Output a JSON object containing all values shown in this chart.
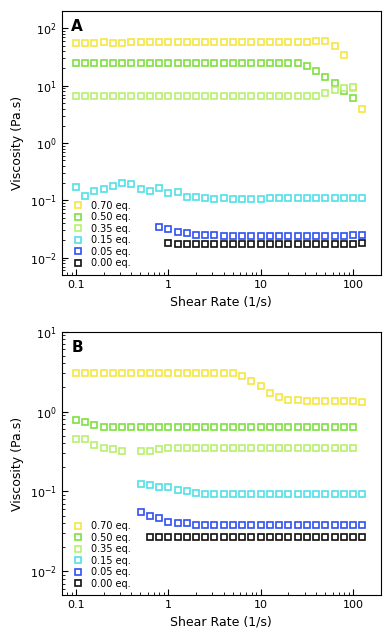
{
  "panel_A": {
    "label": "A",
    "ylabel": "Viscosity (Pa.s)",
    "xlabel": "Shear Rate (1/s)",
    "xlim": [
      0.07,
      200
    ],
    "ylim": [
      0.005,
      200
    ],
    "series": [
      {
        "label": "0.70 eq.",
        "color": "#f5e642",
        "x": [
          0.1,
          0.126,
          0.158,
          0.2,
          0.251,
          0.316,
          0.398,
          0.501,
          0.631,
          0.794,
          1.0,
          1.259,
          1.585,
          1.995,
          2.512,
          3.162,
          3.981,
          5.012,
          6.31,
          7.943,
          10.0,
          12.59,
          15.85,
          19.95,
          25.12,
          31.62,
          39.81,
          50.12,
          63.1,
          79.43,
          100.0,
          125.9
        ],
        "y": [
          55,
          55,
          55,
          57,
          56,
          56,
          57,
          57,
          57,
          57,
          57,
          57,
          57,
          57,
          57,
          57,
          57,
          57,
          57,
          57,
          57,
          57,
          57,
          57,
          57,
          57,
          60,
          60,
          50,
          35,
          9,
          4
        ]
      },
      {
        "label": "0.50 eq.",
        "color": "#7ee040",
        "x": [
          0.1,
          0.126,
          0.158,
          0.2,
          0.251,
          0.316,
          0.398,
          0.501,
          0.631,
          0.794,
          1.0,
          1.259,
          1.585,
          1.995,
          2.512,
          3.162,
          3.981,
          5.012,
          6.31,
          7.943,
          10.0,
          12.59,
          15.85,
          19.95,
          25.12,
          31.62,
          39.81,
          50.12,
          63.1,
          79.43,
          100.0
        ],
        "y": [
          25,
          25,
          25,
          25,
          25,
          25,
          25,
          25,
          25,
          25,
          25,
          25,
          25,
          25,
          25,
          25,
          25,
          25,
          25,
          25,
          25,
          25,
          25,
          25,
          25,
          22,
          18,
          14,
          11,
          8,
          6
        ]
      },
      {
        "label": "0.35 eq.",
        "color": "#b8f070",
        "x": [
          0.1,
          0.126,
          0.158,
          0.2,
          0.251,
          0.316,
          0.398,
          0.501,
          0.631,
          0.794,
          1.0,
          1.259,
          1.585,
          1.995,
          2.512,
          3.162,
          3.981,
          5.012,
          6.31,
          7.943,
          10.0,
          12.59,
          15.85,
          19.95,
          25.12,
          31.62,
          39.81,
          50.12,
          63.1,
          79.43,
          100.0
        ],
        "y": [
          6.5,
          6.5,
          6.5,
          6.5,
          6.5,
          6.5,
          6.5,
          6.5,
          6.5,
          6.5,
          6.5,
          6.5,
          6.5,
          6.5,
          6.5,
          6.5,
          6.5,
          6.5,
          6.5,
          6.5,
          6.5,
          6.5,
          6.5,
          6.5,
          6.5,
          6.5,
          6.5,
          7.5,
          8.5,
          9.2,
          9.5
        ]
      },
      {
        "label": "0.15 eq.",
        "color": "#50e0e8",
        "x": [
          0.1,
          0.126,
          0.158,
          0.2,
          0.251,
          0.316,
          0.398,
          0.501,
          0.631,
          0.794,
          1.0,
          1.259,
          1.585,
          1.995,
          2.512,
          3.162,
          3.981,
          5.012,
          6.31,
          7.943,
          10.0,
          12.59,
          15.85,
          19.95,
          25.12,
          31.62,
          39.81,
          50.12,
          63.1,
          79.43,
          100.0,
          125.9
        ],
        "y": [
          0.17,
          0.12,
          0.145,
          0.155,
          0.175,
          0.2,
          0.19,
          0.155,
          0.145,
          0.165,
          0.135,
          0.14,
          0.115,
          0.115,
          0.11,
          0.105,
          0.11,
          0.105,
          0.105,
          0.105,
          0.105,
          0.11,
          0.11,
          0.11,
          0.11,
          0.11,
          0.11,
          0.11,
          0.11,
          0.11,
          0.11,
          0.11
        ]
      },
      {
        "label": "0.05 eq.",
        "color": "#3050f0",
        "x": [
          0.794,
          1.0,
          1.259,
          1.585,
          1.995,
          2.512,
          3.162,
          3.981,
          5.012,
          6.31,
          7.943,
          10.0,
          12.59,
          15.85,
          19.95,
          25.12,
          31.62,
          39.81,
          50.12,
          63.1,
          79.43,
          100.0,
          125.9
        ],
        "y": [
          0.035,
          0.032,
          0.028,
          0.027,
          0.025,
          0.025,
          0.025,
          0.024,
          0.024,
          0.024,
          0.024,
          0.024,
          0.024,
          0.024,
          0.024,
          0.024,
          0.024,
          0.024,
          0.024,
          0.024,
          0.024,
          0.025,
          0.025
        ]
      },
      {
        "label": "0.00 eq.",
        "color": "#101010",
        "x": [
          1.0,
          1.259,
          1.585,
          1.995,
          2.512,
          3.162,
          3.981,
          5.012,
          6.31,
          7.943,
          10.0,
          12.59,
          15.85,
          19.95,
          25.12,
          31.62,
          39.81,
          50.12,
          63.1,
          79.43,
          100.0,
          125.9
        ],
        "y": [
          0.018,
          0.017,
          0.017,
          0.017,
          0.017,
          0.017,
          0.017,
          0.017,
          0.017,
          0.017,
          0.017,
          0.017,
          0.017,
          0.017,
          0.017,
          0.017,
          0.017,
          0.017,
          0.017,
          0.017,
          0.017,
          0.018
        ]
      }
    ]
  },
  "panel_B": {
    "label": "B",
    "ylabel": "Viscosity (Pa.s)",
    "xlabel": "Shear Rate (1/s)",
    "xlim": [
      0.07,
      200
    ],
    "ylim": [
      0.005,
      10
    ],
    "series": [
      {
        "label": "0.70 eq.",
        "color": "#f5e642",
        "x": [
          0.1,
          0.126,
          0.158,
          0.2,
          0.251,
          0.316,
          0.398,
          0.501,
          0.631,
          0.794,
          1.0,
          1.259,
          1.585,
          1.995,
          2.512,
          3.162,
          3.981,
          5.012,
          6.31,
          7.943,
          10.0,
          12.59,
          15.85,
          19.95,
          25.12,
          31.62,
          39.81,
          50.12,
          63.1,
          79.43,
          100.0,
          125.9
        ],
        "y": [
          3.0,
          3.0,
          3.0,
          3.0,
          3.0,
          3.0,
          3.0,
          3.0,
          3.0,
          3.0,
          3.0,
          3.0,
          3.0,
          3.0,
          3.0,
          3.0,
          3.0,
          3.0,
          2.8,
          2.4,
          2.1,
          1.7,
          1.5,
          1.4,
          1.38,
          1.35,
          1.35,
          1.35,
          1.35,
          1.35,
          1.35,
          1.3
        ]
      },
      {
        "label": "0.50 eq.",
        "color": "#7ee040",
        "x": [
          0.1,
          0.126,
          0.158,
          0.2,
          0.251,
          0.316,
          0.398,
          0.501,
          0.631,
          0.794,
          1.0,
          1.259,
          1.585,
          1.995,
          2.512,
          3.162,
          3.981,
          5.012,
          6.31,
          7.943,
          10.0,
          12.59,
          15.85,
          19.95,
          25.12,
          31.62,
          39.81,
          50.12,
          63.1,
          79.43,
          100.0
        ],
        "y": [
          0.78,
          0.75,
          0.68,
          0.65,
          0.65,
          0.65,
          0.65,
          0.65,
          0.65,
          0.65,
          0.65,
          0.65,
          0.65,
          0.65,
          0.65,
          0.65,
          0.65,
          0.65,
          0.65,
          0.65,
          0.65,
          0.65,
          0.65,
          0.65,
          0.65,
          0.65,
          0.65,
          0.65,
          0.65,
          0.65,
          0.65
        ]
      },
      {
        "label": "0.35 eq.",
        "color": "#b8f070",
        "x": [
          0.1,
          0.126,
          0.158,
          0.2,
          0.251,
          0.316,
          0.501,
          0.631,
          0.794,
          1.0,
          1.259,
          1.585,
          1.995,
          2.512,
          3.162,
          3.981,
          5.012,
          6.31,
          7.943,
          10.0,
          12.59,
          15.85,
          19.95,
          25.12,
          31.62,
          39.81,
          50.12,
          63.1,
          79.43,
          100.0
        ],
        "y": [
          0.45,
          0.45,
          0.38,
          0.35,
          0.34,
          0.32,
          0.32,
          0.32,
          0.34,
          0.35,
          0.35,
          0.35,
          0.35,
          0.35,
          0.35,
          0.35,
          0.35,
          0.35,
          0.35,
          0.35,
          0.35,
          0.35,
          0.35,
          0.35,
          0.35,
          0.35,
          0.35,
          0.35,
          0.35,
          0.35
        ]
      },
      {
        "label": "0.15 eq.",
        "color": "#50e0e8",
        "x": [
          0.501,
          0.631,
          0.794,
          1.0,
          1.259,
          1.585,
          1.995,
          2.512,
          3.162,
          3.981,
          5.012,
          6.31,
          7.943,
          10.0,
          12.59,
          15.85,
          19.95,
          25.12,
          31.62,
          39.81,
          50.12,
          63.1,
          79.43,
          100.0,
          125.9
        ],
        "y": [
          0.125,
          0.12,
          0.115,
          0.115,
          0.105,
          0.1,
          0.095,
          0.093,
          0.092,
          0.092,
          0.092,
          0.092,
          0.092,
          0.092,
          0.092,
          0.092,
          0.092,
          0.092,
          0.092,
          0.092,
          0.092,
          0.092,
          0.092,
          0.092,
          0.092
        ]
      },
      {
        "label": "0.05 eq.",
        "color": "#3050f0",
        "x": [
          0.501,
          0.631,
          0.794,
          1.0,
          1.259,
          1.585,
          1.995,
          2.512,
          3.162,
          3.981,
          5.012,
          6.31,
          7.943,
          10.0,
          12.59,
          15.85,
          19.95,
          25.12,
          31.62,
          39.81,
          50.12,
          63.1,
          79.43,
          100.0,
          125.9
        ],
        "y": [
          0.055,
          0.05,
          0.046,
          0.042,
          0.04,
          0.04,
          0.038,
          0.038,
          0.038,
          0.038,
          0.038,
          0.038,
          0.038,
          0.038,
          0.038,
          0.038,
          0.038,
          0.038,
          0.038,
          0.038,
          0.038,
          0.038,
          0.038,
          0.038,
          0.038
        ]
      },
      {
        "label": "0.00 eq.",
        "color": "#101010",
        "x": [
          0.631,
          0.794,
          1.0,
          1.259,
          1.585,
          1.995,
          2.512,
          3.162,
          3.981,
          5.012,
          6.31,
          7.943,
          10.0,
          12.59,
          15.85,
          19.95,
          25.12,
          31.62,
          39.81,
          50.12,
          63.1,
          79.43,
          100.0,
          125.9
        ],
        "y": [
          0.027,
          0.027,
          0.027,
          0.027,
          0.027,
          0.027,
          0.027,
          0.027,
          0.027,
          0.027,
          0.027,
          0.027,
          0.027,
          0.027,
          0.027,
          0.027,
          0.027,
          0.027,
          0.027,
          0.027,
          0.027,
          0.027,
          0.027,
          0.027
        ]
      }
    ]
  },
  "legend_labels": [
    "0.70 eq.",
    "0.50 eq.",
    "0.35 eq.",
    "0.15 eq.",
    "0.05 eq.",
    "0.00 eq."
  ],
  "legend_colors": [
    "#f5e642",
    "#7ee040",
    "#b8f070",
    "#50e0e8",
    "#3050f0",
    "#101010"
  ],
  "marker": "s",
  "marker_size": 4,
  "background_color": "#ffffff"
}
